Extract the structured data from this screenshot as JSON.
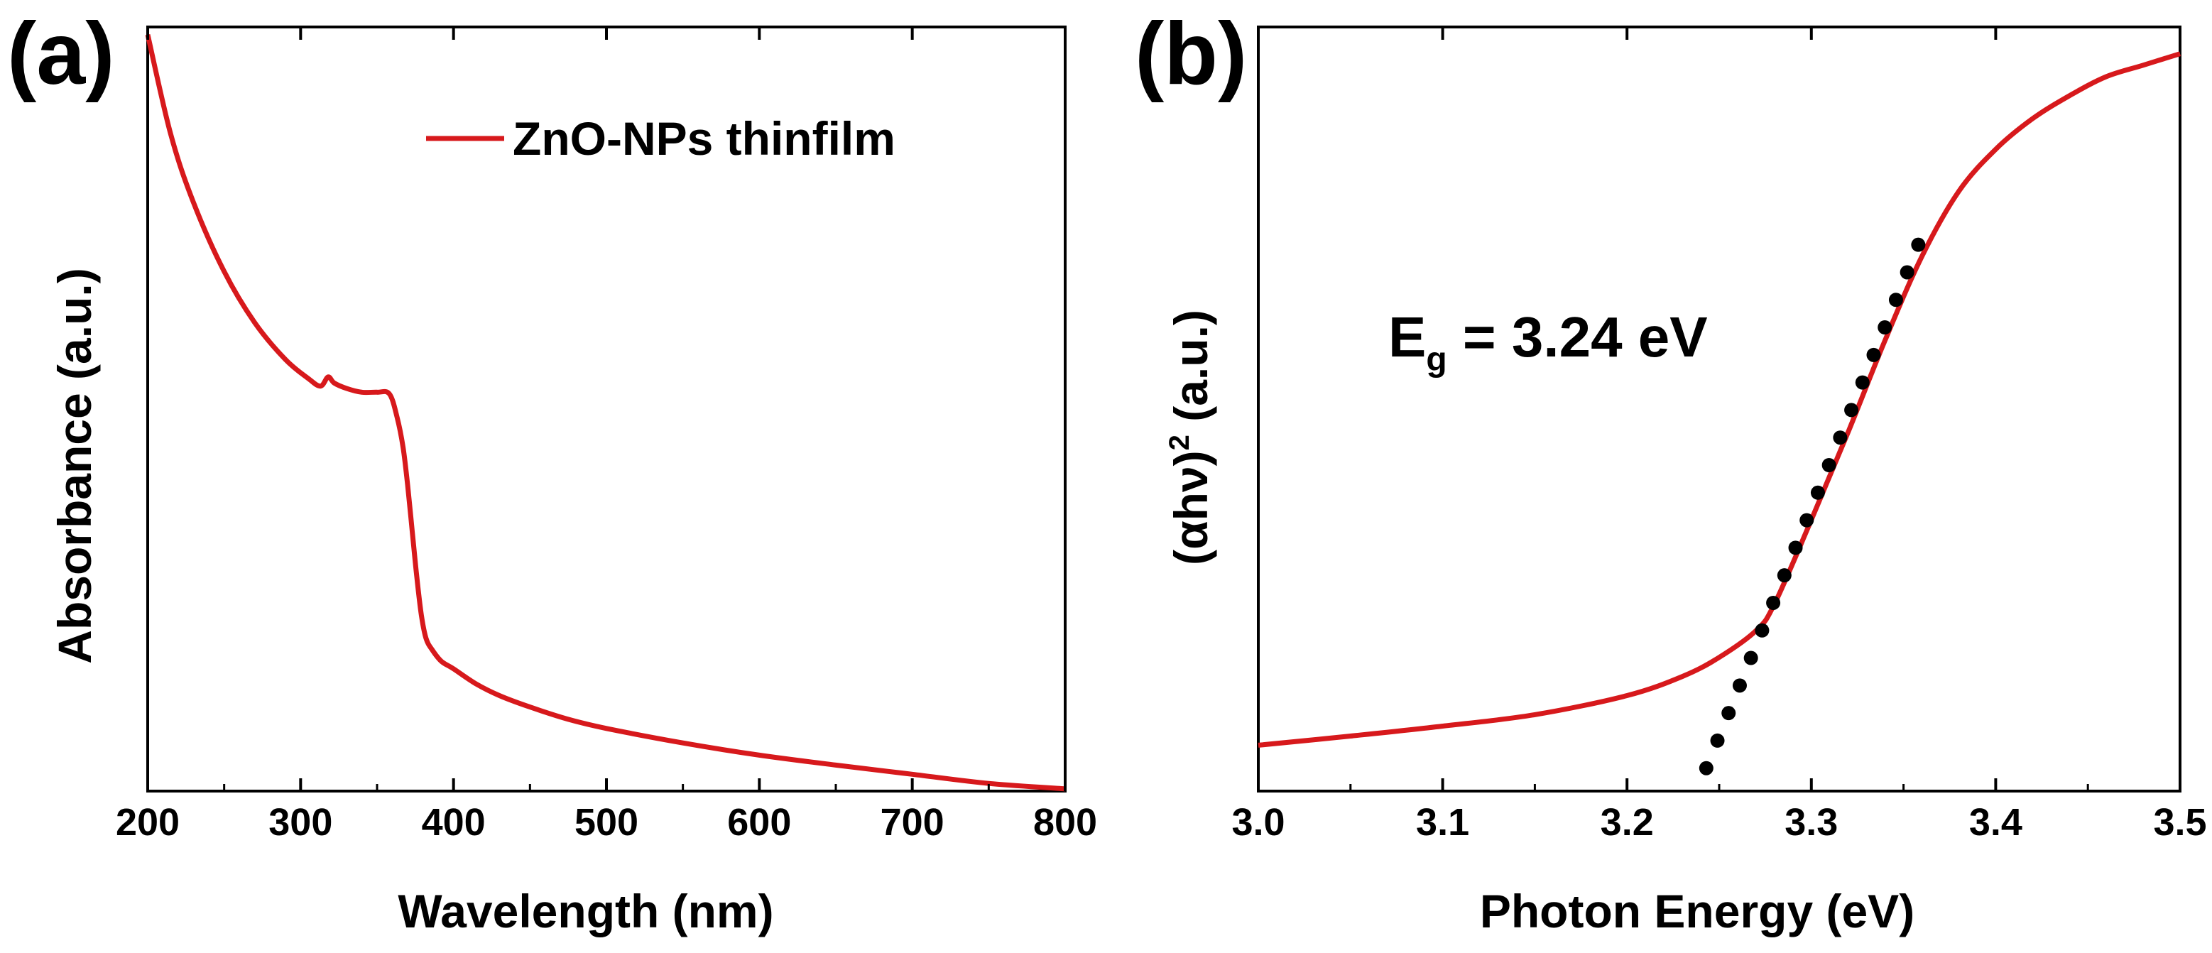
{
  "colors": {
    "curve": "#d7191c",
    "fit": "#000000",
    "axis": "#000000"
  },
  "chart_data": [
    {
      "type": "line",
      "panel_label": "(a)",
      "title": "",
      "xlabel": "Wavelength (nm)",
      "ylabel": "Absorbance (a.u.)",
      "xlim": [
        200,
        800
      ],
      "ylim": [
        0,
        1
      ],
      "x_ticks": [
        200,
        300,
        400,
        500,
        600,
        700,
        800
      ],
      "x_tick_labels": [
        "200",
        "300",
        "400",
        "500",
        "600",
        "700",
        "800"
      ],
      "y_ticks_shown": false,
      "legend": {
        "position": "top-right",
        "entries": [
          "ZnO-NPs thinfilm"
        ]
      },
      "series": [
        {
          "name": "ZnO-NPs thinfilm",
          "x": [
            200,
            215,
            230,
            250,
            270,
            290,
            305,
            313,
            318,
            322,
            330,
            340,
            350,
            358,
            363,
            367,
            370,
            373,
            376,
            379,
            382,
            386,
            392,
            400,
            415,
            430,
            450,
            475,
            500,
            550,
            600,
            650,
            700,
            750,
            800
          ],
          "y": [
            0.99,
            0.86,
            0.77,
            0.68,
            0.613,
            0.565,
            0.54,
            0.53,
            0.542,
            0.534,
            0.527,
            0.522,
            0.522,
            0.52,
            0.49,
            0.45,
            0.4,
            0.34,
            0.28,
            0.23,
            0.2,
            0.185,
            0.17,
            0.16,
            0.14,
            0.125,
            0.11,
            0.094,
            0.082,
            0.063,
            0.047,
            0.034,
            0.022,
            0.01,
            0.003
          ]
        }
      ]
    },
    {
      "type": "line",
      "panel_label": "(b)",
      "title": "",
      "xlabel": "Photon Energy (eV)",
      "ylabel_prefix": "(αhν)",
      "ylabel_sup": "2",
      "ylabel_suffix": " (a.u.)",
      "xlim": [
        3.0,
        3.5
      ],
      "ylim": [
        0,
        1
      ],
      "x_ticks": [
        3.0,
        3.1,
        3.2,
        3.3,
        3.4,
        3.5
      ],
      "x_tick_labels": [
        "3.0",
        "3.1",
        "3.2",
        "3.3",
        "3.4",
        "3.5"
      ],
      "y_ticks_shown": false,
      "annotation": {
        "main": "E",
        "sub": "g",
        "rest": " = 3.24 eV",
        "position": "upper-middle"
      },
      "series": [
        {
          "name": "(αhν)²",
          "x": [
            3.0,
            3.05,
            3.1,
            3.15,
            3.2,
            3.23,
            3.25,
            3.27,
            3.28,
            3.3,
            3.32,
            3.34,
            3.36,
            3.38,
            3.4,
            3.42,
            3.44,
            3.46,
            3.48,
            3.5
          ],
          "y": [
            0.06,
            0.072,
            0.085,
            0.1,
            0.125,
            0.15,
            0.175,
            0.21,
            0.245,
            0.355,
            0.47,
            0.59,
            0.7,
            0.785,
            0.84,
            0.88,
            0.91,
            0.935,
            0.95,
            0.965
          ]
        },
        {
          "name": "linear fit",
          "style": "dotted",
          "x": [
            3.243,
            3.358
          ],
          "y": [
            0.03,
            0.715
          ],
          "n_dots": 20
        }
      ]
    }
  ]
}
